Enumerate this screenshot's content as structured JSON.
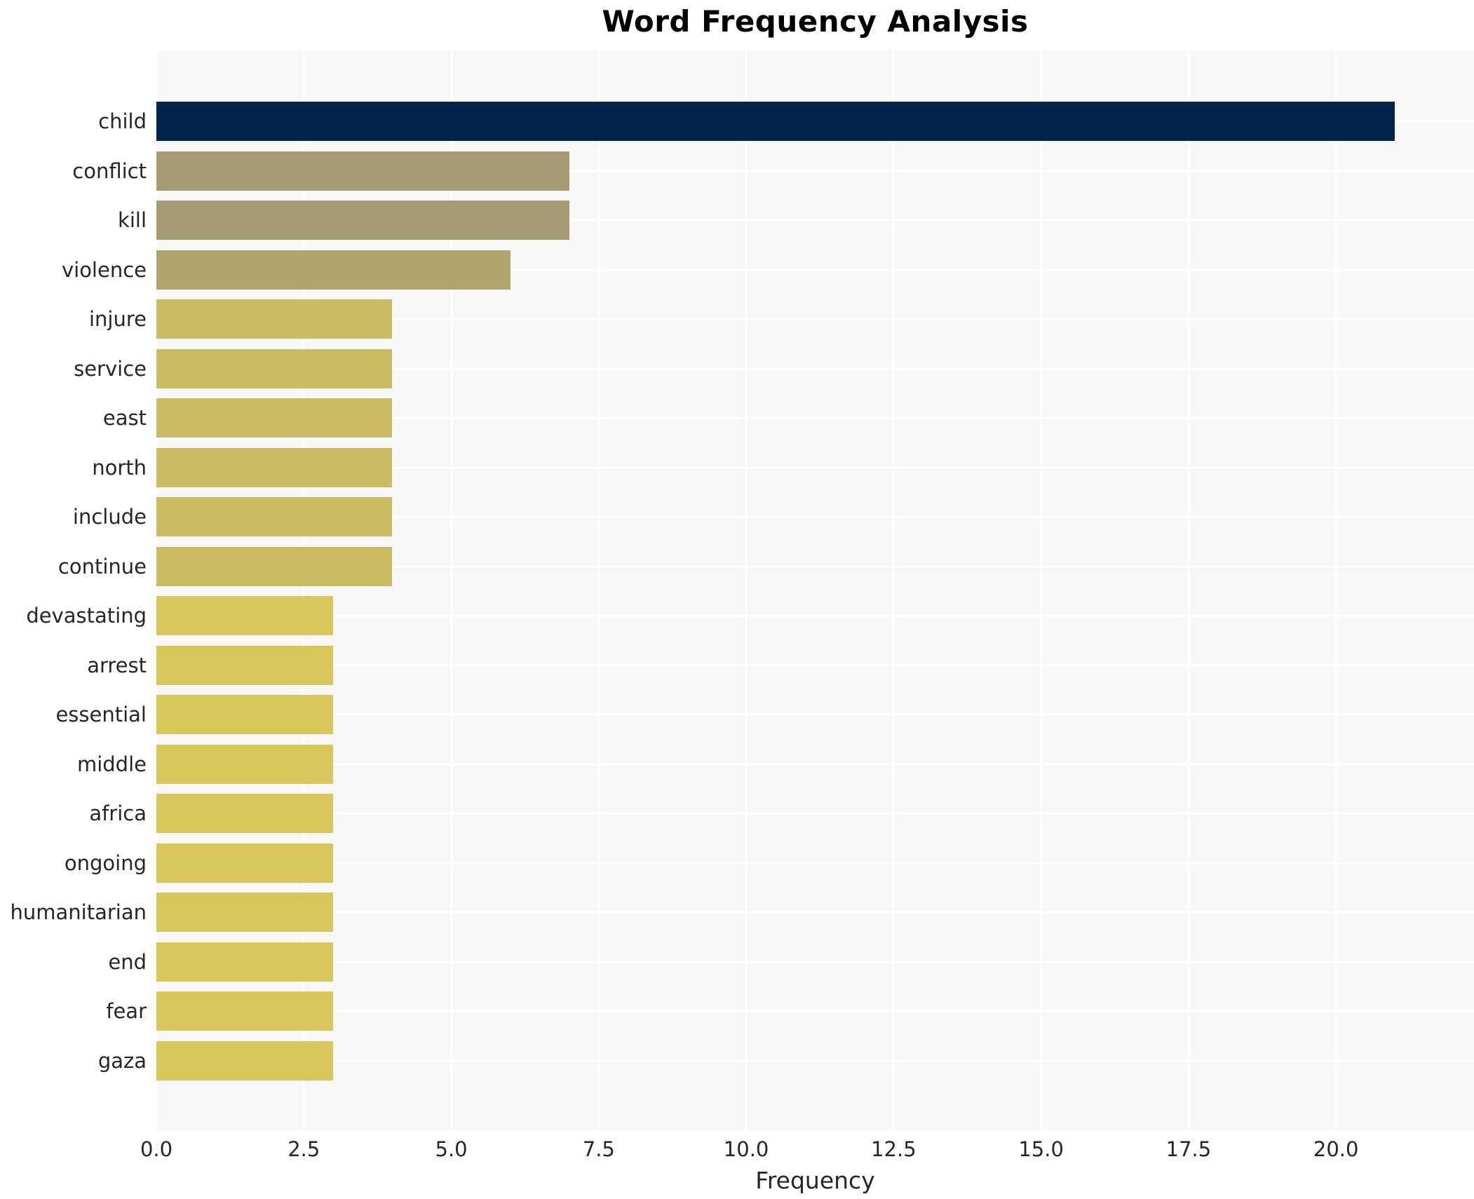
{
  "chart_data": {
    "type": "bar",
    "orientation": "horizontal",
    "title": "Word Frequency Analysis",
    "xlabel": "Frequency",
    "ylabel": "",
    "categories": [
      "child",
      "conflict",
      "kill",
      "violence",
      "injure",
      "service",
      "east",
      "north",
      "include",
      "continue",
      "devastating",
      "arrest",
      "essential",
      "middle",
      "africa",
      "ongoing",
      "humanitarian",
      "end",
      "fear",
      "gaza"
    ],
    "values": [
      21,
      7,
      7,
      6,
      4,
      4,
      4,
      4,
      4,
      4,
      3,
      3,
      3,
      3,
      3,
      3,
      3,
      3,
      3,
      3
    ],
    "bar_colors": [
      "#02234c",
      "#a49b72",
      "#a49b72",
      "#aea46c",
      "#cbbb62",
      "#cbbb62",
      "#cbbb62",
      "#cbbb62",
      "#cbbb62",
      "#cbbb62",
      "#d8c65b",
      "#d8c65b",
      "#d8c65b",
      "#d8c65b",
      "#d8c65b",
      "#d8c65b",
      "#d8c65b",
      "#d8c65b",
      "#d8c65b",
      "#d8c65b"
    ],
    "xlim": [
      0,
      22.34
    ],
    "xtick_values": [
      0,
      2.5,
      5,
      7.5,
      10,
      12.5,
      15,
      17.5,
      20
    ],
    "xtick_labels": [
      "0.0",
      "2.5",
      "5.0",
      "7.5",
      "10.0",
      "12.5",
      "15.0",
      "17.5",
      "20.0"
    ],
    "grid": true,
    "legend_position": "none",
    "colors": {
      "page_bg": "#ffffff",
      "plot_bg": "#f7f7f7",
      "grid": "#ffffff",
      "text": "#262626",
      "title_text": "#000000"
    }
  }
}
